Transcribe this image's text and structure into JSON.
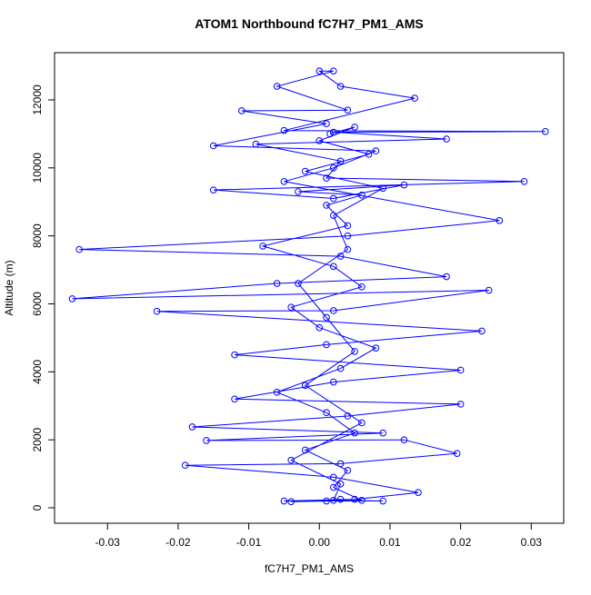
{
  "chart_data": {
    "type": "line",
    "title": "ATOM1 Northbound fC7H7_PM1_AMS",
    "x_label": "fC7H7_PM1_AMS",
    "y_label": "Altitude (m)",
    "color": "#0000ff",
    "marker": "open-circle",
    "xlim": [
      -0.0375,
      0.0346
    ],
    "ylim": [
      -454,
      13389
    ],
    "xticks": [
      -0.03,
      -0.02,
      -0.01,
      {
        "value": 0,
        "label": "0.00"
      },
      0.01,
      0.02,
      0.03
    ],
    "yticks": [
      0,
      2000,
      4000,
      6000,
      8000,
      10000,
      12000
    ],
    "x": [
      0.001,
      0.003,
      -0.004,
      0.006,
      0.002,
      0.004,
      -0.002,
      0.005,
      0.001,
      -0.006,
      0.003,
      0.008,
      0.0,
      -0.004,
      0.006,
      0.002,
      -0.008,
      0.004,
      0.001,
      0.006,
      -0.003,
      0.012,
      0.002,
      -0.015,
      0.029,
      0.001,
      0.003,
      -0.009,
      0.018,
      0.002,
      0.032,
      -0.005,
      0.0135,
      0.003,
      0.0,
      0.002,
      -0.006,
      0.004,
      -0.011,
      0.001,
      -0.015,
      0.008,
      0.002,
      -0.005,
      0.0255,
      0.004,
      -0.034,
      0.003,
      0.018,
      -0.006,
      -0.035,
      0.024,
      0.002,
      -0.023,
      0.023,
      0.001,
      -0.012,
      0.02,
      0.002,
      -0.012,
      0.02,
      0.004,
      -0.018,
      0.009,
      -0.016,
      0.012,
      0.0195,
      0.003,
      -0.019,
      0.002,
      0.014,
      0.005,
      -0.005,
      0.009,
      0.002,
      0.003,
      -0.004,
      0.006,
      -0.002,
      0.005,
      0.001,
      -0.003,
      0.004,
      0.002,
      0.009,
      -0.002,
      0.007,
      0.0,
      0.005,
      0.0015
    ],
    "values": [
      200,
      250,
      180,
      220,
      600,
      1100,
      1700,
      2200,
      2800,
      3400,
      4100,
      4700,
      5300,
      5900,
      6500,
      7100,
      7700,
      8300,
      8900,
      9200,
      9300,
      9500,
      9100,
      9350,
      9600,
      9700,
      10200,
      10700,
      10850,
      11050,
      11070,
      11100,
      12050,
      12400,
      12850,
      12850,
      12400,
      11700,
      11680,
      11300,
      10650,
      10500,
      10000,
      9600,
      8450,
      8000,
      7600,
      7400,
      6800,
      6600,
      6150,
      6400,
      5800,
      5780,
      5200,
      4800,
      4500,
      4050,
      3700,
      3200,
      3050,
      2700,
      2380,
      2200,
      1980,
      2000,
      1600,
      1300,
      1250,
      900,
      450,
      250,
      200,
      200,
      220,
      700,
      1400,
      2500,
      3600,
      4600,
      5600,
      6600,
      7600,
      8600,
      9400,
      9900,
      10400,
      10800,
      11200,
      11000
    ]
  }
}
